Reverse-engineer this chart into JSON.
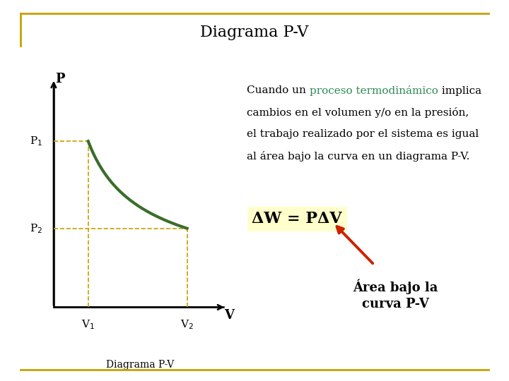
{
  "title": "Diagrama P-V",
  "title_fontsize": 16,
  "bg_color": "#ffffff",
  "border_color": "#c8a000",
  "v1": 0.22,
  "v2": 0.85,
  "p1": 0.8,
  "p2": 0.38,
  "curve_color": "#3a6e2a",
  "curve_linewidth": 3.0,
  "dashed_color": "#c8a000",
  "dashed_lw": 1.2,
  "axis_label_p": "P",
  "axis_label_v": "V",
  "label_p1": "P$_1$",
  "label_p2": "P$_2$",
  "label_v1": "V$_1$",
  "label_v2": "V$_2$",
  "subtitle": "Diagrama P-V",
  "text_line1_before": "Cuando un ",
  "text_line1_highlight": "proceso termodinámico",
  "text_line1_after": " implica",
  "text_line2": "cambios en el volumen y/o en la presión,",
  "text_line3": "el trabajo realizado por el sistema es igual",
  "text_line4": "al área bajo la curva en un diagrama P-V.",
  "highlight_color": "#2e8b57",
  "text_color": "#000000",
  "formula_text": "ΔW = PΔV",
  "formula_bg": "#ffffcc",
  "area_box_text": "Área bajo la\ncurva P-V",
  "area_box_bg": "#add8e6",
  "area_box_border": "#808080",
  "arrow_color": "#cc2200",
  "text_fontsize": 11,
  "formula_fontsize": 16,
  "area_fontsize": 13
}
